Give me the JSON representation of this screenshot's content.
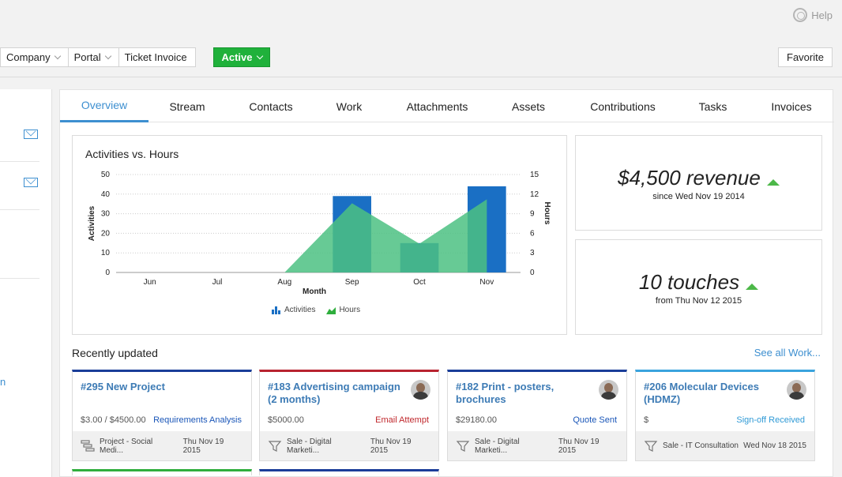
{
  "header": {
    "help_label": "Help",
    "toolbar": [
      {
        "label": "Company",
        "dropdown": true
      },
      {
        "label": "Portal",
        "dropdown": true
      },
      {
        "label": "Ticket Invoice",
        "dropdown": false
      }
    ],
    "status_button": "Active",
    "favorite_button": "Favorite"
  },
  "left_panel": {
    "partial_text": "n"
  },
  "tabs": [
    {
      "label": "Overview",
      "active": true
    },
    {
      "label": "Stream",
      "active": false
    },
    {
      "label": "Contacts",
      "active": false
    },
    {
      "label": "Work",
      "active": false
    },
    {
      "label": "Attachments",
      "active": false
    },
    {
      "label": "Assets",
      "active": false
    },
    {
      "label": "Contributions",
      "active": false
    },
    {
      "label": "Tasks",
      "active": false
    },
    {
      "label": "Invoices",
      "active": false
    }
  ],
  "chart_data": {
    "type": "bar",
    "title": "Activities vs. Hours",
    "xlabel": "Month",
    "ylabel": "Activities",
    "y2label": "Hours",
    "categories": [
      "Jun",
      "Jul",
      "Aug",
      "Sep",
      "Oct",
      "Nov"
    ],
    "ylim": [
      0,
      50
    ],
    "y2lim": [
      0,
      15
    ],
    "yticks": [
      0,
      10,
      20,
      30,
      40,
      50
    ],
    "y2ticks": [
      0,
      3,
      6,
      9,
      12,
      15
    ],
    "series": [
      {
        "name": "Activities",
        "type": "bar",
        "axis": "left",
        "color": "#1a6fc4",
        "values": [
          0,
          0,
          0,
          39,
          15,
          44
        ]
      },
      {
        "name": "Hours",
        "type": "area",
        "axis": "right",
        "color": "#4cc183",
        "values": [
          0,
          0,
          0,
          10.6,
          4.4,
          11.2
        ]
      }
    ],
    "legend_position": "bottom",
    "grid": true
  },
  "stats": [
    {
      "value": "$4,500 revenue",
      "sub": "since Wed Nov 19 2014",
      "trend": "up"
    },
    {
      "value": "10 touches",
      "sub": "from Thu Nov 12 2015",
      "trend": "up"
    }
  ],
  "recent": {
    "title": "Recently updated",
    "see_all": "See all Work...",
    "cards": [
      {
        "title": "#295 New Project",
        "amount": "$3.00 / $4500.00",
        "status": "Requirements Analysis",
        "status_color": "#1a56b8",
        "accent": "#1a3d99",
        "type_icon": "project-icon",
        "foot_text": "Project - Social Medi...",
        "foot_date": "Thu Nov 19 2015",
        "has_avatar": false
      },
      {
        "title": "#183 Advertising campaign (2 months)",
        "amount": "$5000.00",
        "status": "Email Attempt",
        "status_color": "#c0282d",
        "accent": "#b8232f",
        "type_icon": "funnel-icon",
        "foot_text": "Sale - Digital Marketi...",
        "foot_date": "Thu Nov 19 2015",
        "has_avatar": true
      },
      {
        "title": "#182 Print - posters, brochures",
        "amount": "$29180.00",
        "status": "Quote Sent",
        "status_color": "#1a56b8",
        "accent": "#1a3d99",
        "type_icon": "funnel-icon",
        "foot_text": "Sale - Digital Marketi...",
        "foot_date": "Thu Nov 19 2015",
        "has_avatar": true
      },
      {
        "title": "#206 Molecular Devices (HDMZ)",
        "amount": "$",
        "status": "Sign-off Received",
        "status_color": "#2f9ad6",
        "accent": "#3aa3dd",
        "type_icon": "funnel-icon",
        "foot_text": "Sale - IT Consultation",
        "foot_date": "Wed Nov 18 2015",
        "has_avatar": true
      }
    ],
    "next_row_accents": [
      "#2fae3d",
      "#1a3d99"
    ]
  }
}
